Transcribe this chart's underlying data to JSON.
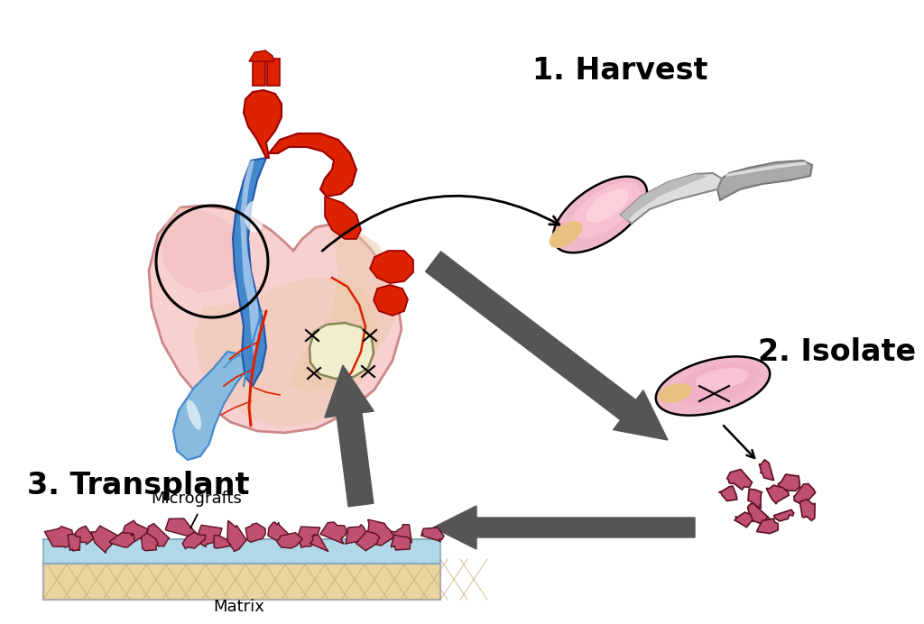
{
  "background_color": "#ffffff",
  "label_harvest": "1. Harvest",
  "label_isolate": "2. Isolate",
  "label_transplant": "3. Transplant",
  "label_micrografts": "Micrografts",
  "label_matrix": "Matrix",
  "heart_pink_light": "#f8d0d0",
  "heart_pink_mid": "#f0b8b8",
  "heart_pink_dark": "#e8a0a0",
  "heart_tan": "#e8c8a0",
  "heart_red": "#dd2200",
  "heart_blue": "#4488cc",
  "heart_light_blue": "#88bbdd",
  "heart_pale_blue": "#c0d8ee",
  "arrow_dark": "#555555",
  "tissue_pink_light": "#f0b8c8",
  "tissue_pink_mid": "#e090a8",
  "tissue_pink_dark": "#c05070",
  "tissue_tan": "#e8c080",
  "scalpel_light": "#dddddd",
  "scalpel_dark": "#999999",
  "matrix_tan": "#e8d5a0",
  "matrix_tan_dark": "#d4c080",
  "matrix_blue": "#b0d8e8",
  "graft_cream": "#f0eecc"
}
